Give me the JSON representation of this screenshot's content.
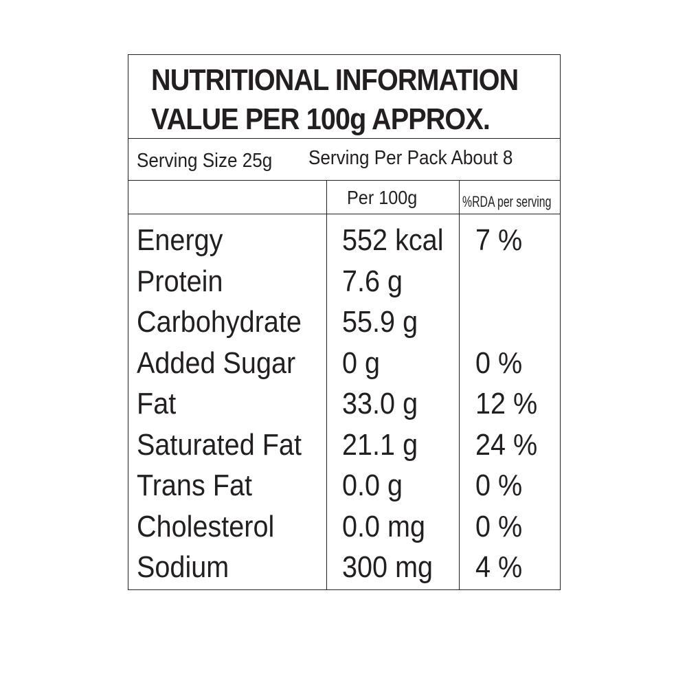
{
  "title": {
    "line1": "NUTRITIONAL INFORMATION",
    "line2": "VALUE PER 100g APPROX."
  },
  "serving": {
    "size": "Serving Size 25g",
    "per_pack": "Serving Per Pack About 8"
  },
  "columns": {
    "nutrient": "",
    "per_100g": "Per 100g",
    "rda": "%RDA per serving"
  },
  "rows": [
    {
      "nutrient": "Energy",
      "per_100g": "552 kcal",
      "rda": "7 %"
    },
    {
      "nutrient": "Protein",
      "per_100g": "7.6 g",
      "rda": ""
    },
    {
      "nutrient": "Carbohydrate",
      "per_100g": "55.9 g",
      "rda": ""
    },
    {
      "nutrient": "Added Sugar",
      "per_100g": "0 g",
      "rda": "0 %"
    },
    {
      "nutrient": "Fat",
      "per_100g": "33.0 g",
      "rda": "12 %"
    },
    {
      "nutrient": "Saturated Fat",
      "per_100g": "21.1 g",
      "rda": "24 %"
    },
    {
      "nutrient": "Trans Fat",
      "per_100g": "0.0 g",
      "rda": "0 %"
    },
    {
      "nutrient": "Cholesterol",
      "per_100g": "0.0 mg",
      "rda": "0 %"
    },
    {
      "nutrient": "Sodium",
      "per_100g": "300 mg",
      "rda": "4 %"
    }
  ]
}
